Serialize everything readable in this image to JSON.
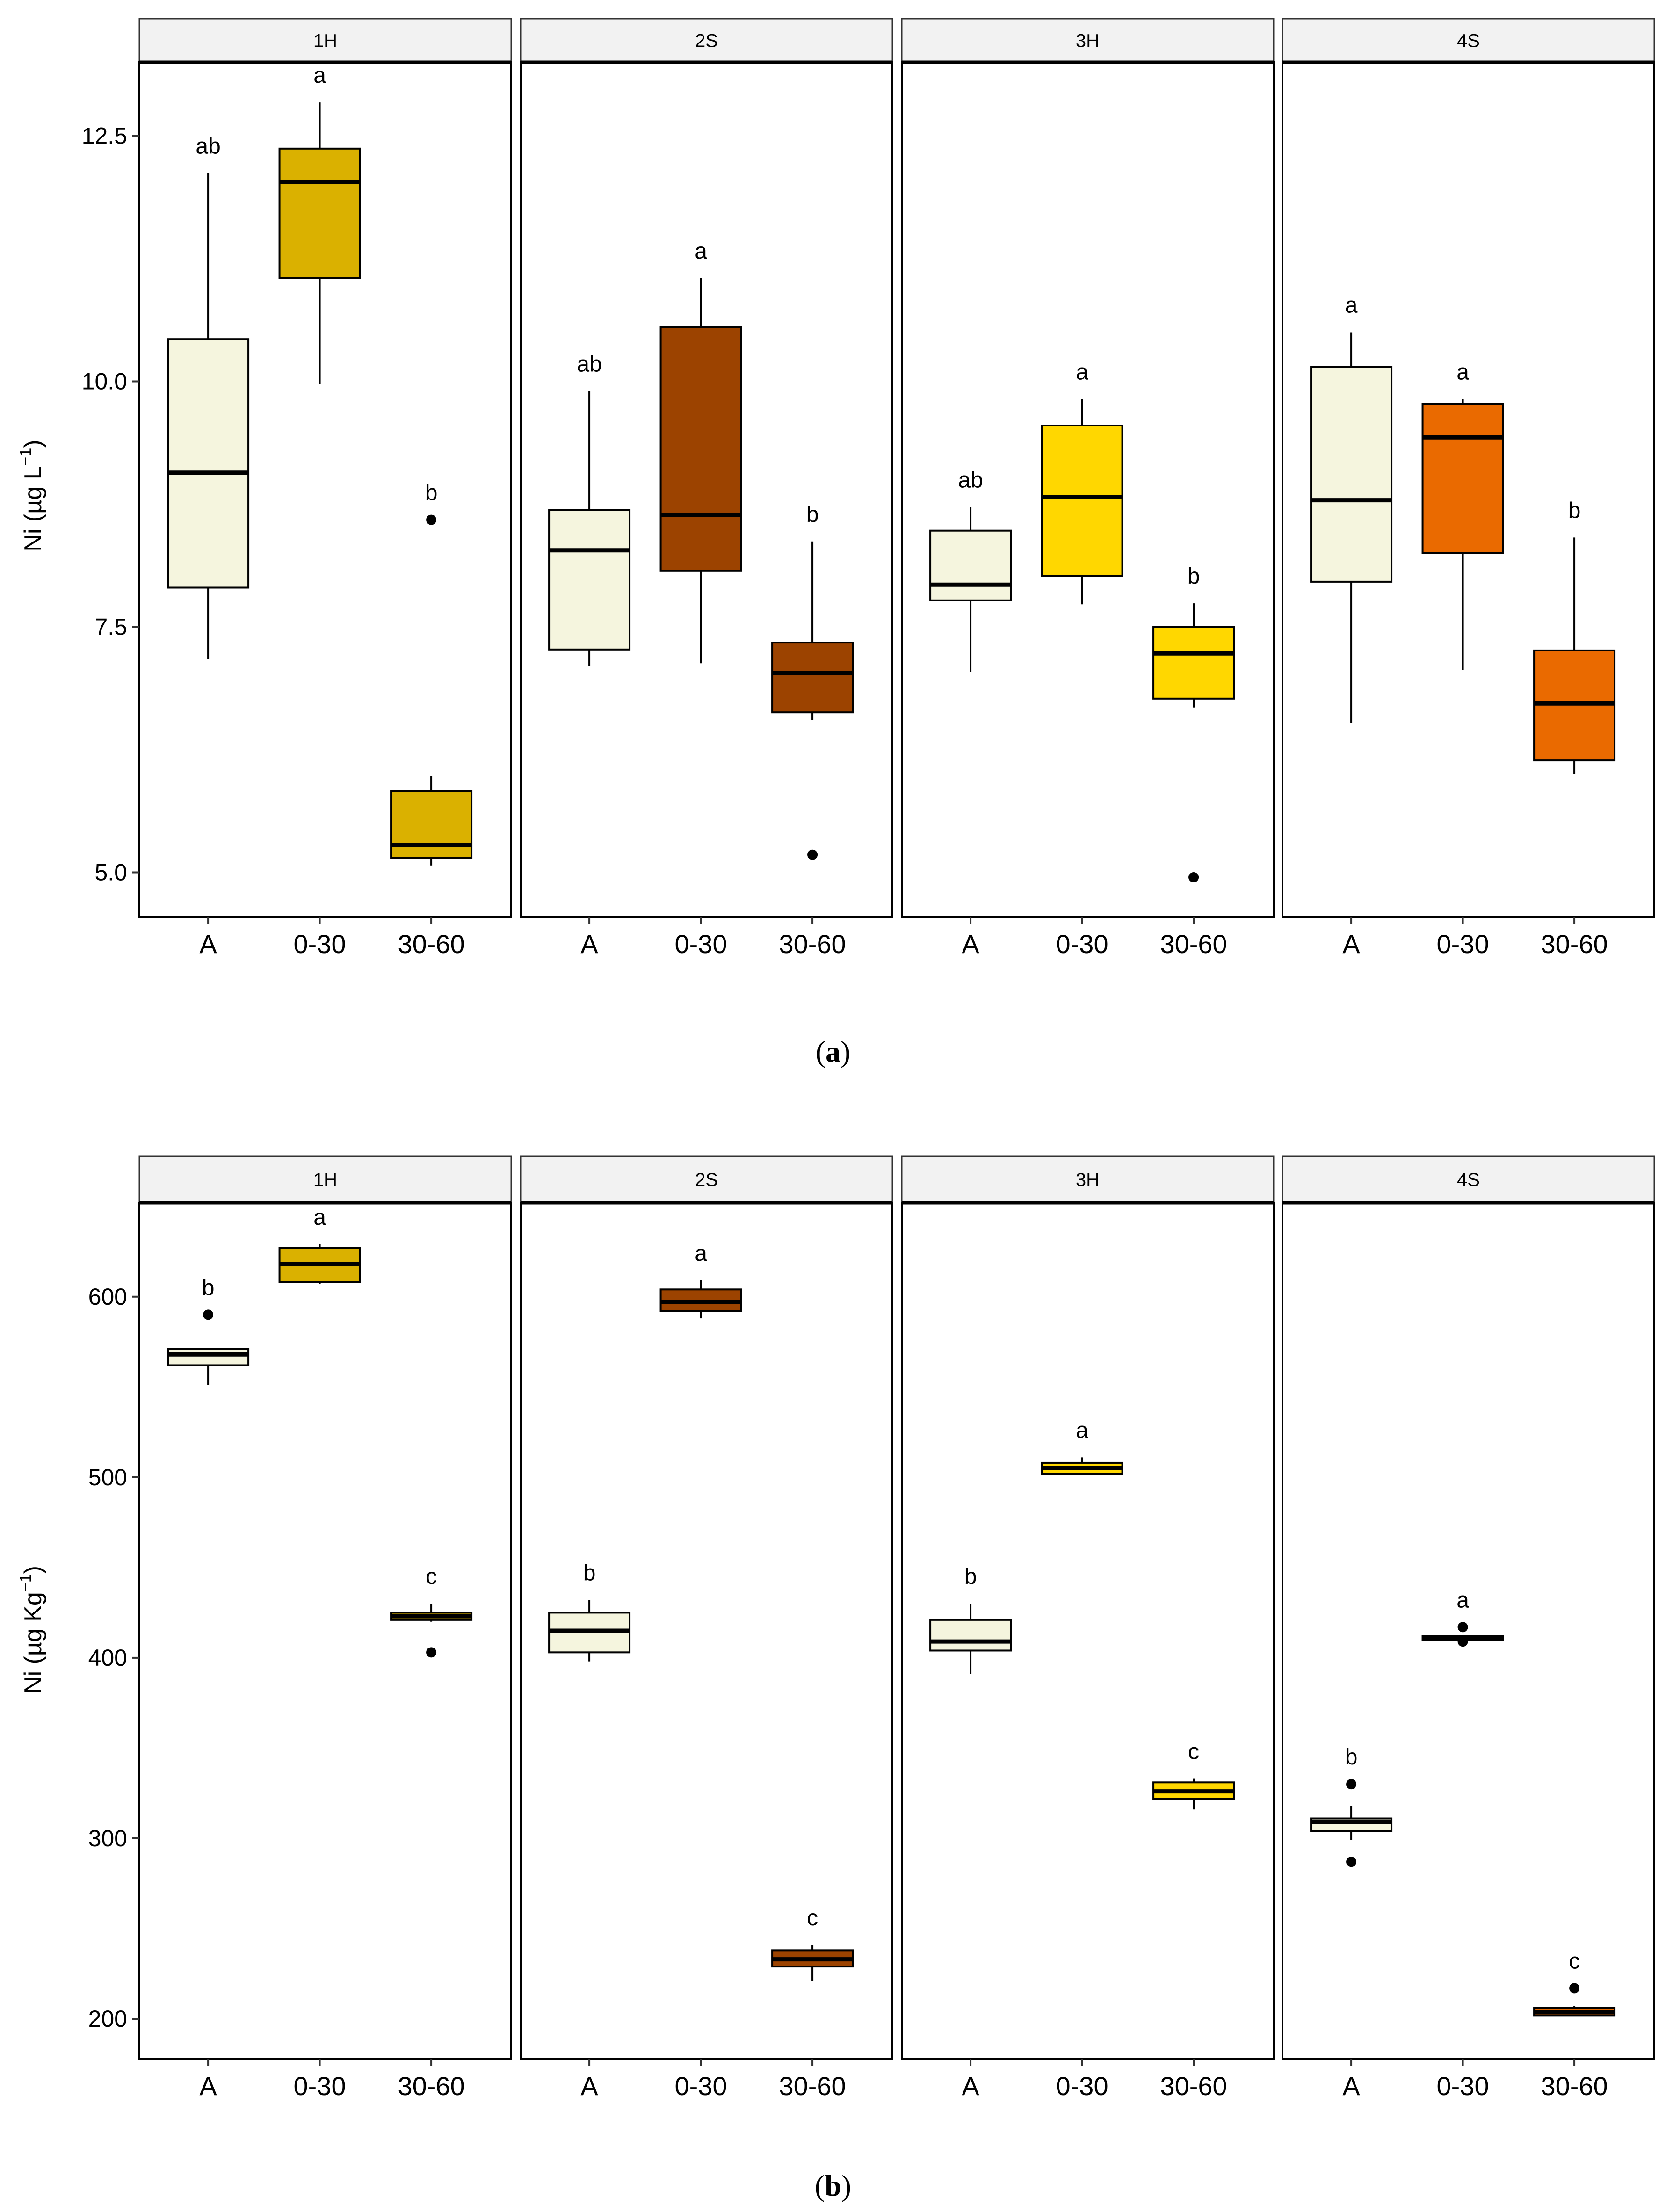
{
  "figure": {
    "caption_a": "(a)",
    "caption_b": "(b)",
    "caption_a_letter": "a",
    "caption_b_letter": "b"
  },
  "colors": {
    "A": "#f5f5de",
    "1H": "#dab100",
    "2S": "#9c4300",
    "3H": "#ffd700",
    "4S": "#ea6a00",
    "strip_fill": "#f2f2f2",
    "outline": "#000000"
  },
  "chart_data": [
    {
      "type": "boxplot",
      "ylabel": "Ni (µg L⁻¹)",
      "ylabel_main": "Ni (µg L",
      "ylabel_sup": "−1",
      "ylabel_close": ")",
      "ylim": [
        4.55,
        13.25
      ],
      "yticks": [
        5.0,
        7.5,
        10.0,
        12.5
      ],
      "ytick_labels": [
        "5.0",
        "7.5",
        "10.0",
        "12.5"
      ],
      "categories": [
        "A",
        "0-30",
        "30-60"
      ],
      "facets": [
        {
          "name": "1H",
          "boxes": [
            {
              "cat": "A",
              "min": 7.17,
              "q1": 7.9,
              "median": 9.07,
              "q3": 10.43,
              "max": 12.12,
              "outliers": [],
              "letter": "ab"
            },
            {
              "cat": "0-30",
              "min": 9.97,
              "q1": 11.05,
              "median": 12.03,
              "q3": 12.37,
              "max": 12.84,
              "outliers": [],
              "letter": "a"
            },
            {
              "cat": "30-60",
              "min": 5.07,
              "q1": 5.15,
              "median": 5.28,
              "q3": 5.83,
              "max": 5.98,
              "outliers": [
                8.59
              ],
              "letter": "b"
            }
          ]
        },
        {
          "name": "2S",
          "boxes": [
            {
              "cat": "A",
              "min": 7.1,
              "q1": 7.27,
              "median": 8.28,
              "q3": 8.69,
              "max": 9.9,
              "outliers": [],
              "letter": "ab"
            },
            {
              "cat": "0-30",
              "min": 7.13,
              "q1": 8.07,
              "median": 8.64,
              "q3": 10.55,
              "max": 11.05,
              "outliers": [],
              "letter": "a"
            },
            {
              "cat": "30-60",
              "min": 6.55,
              "q1": 6.63,
              "median": 7.03,
              "q3": 7.34,
              "max": 8.37,
              "outliers": [
                5.18
              ],
              "letter": "b"
            }
          ]
        },
        {
          "name": "3H",
          "boxes": [
            {
              "cat": "A",
              "min": 7.04,
              "q1": 7.77,
              "median": 7.93,
              "q3": 8.48,
              "max": 8.72,
              "outliers": [],
              "letter": "ab"
            },
            {
              "cat": "0-30",
              "min": 7.73,
              "q1": 8.02,
              "median": 8.82,
              "q3": 9.55,
              "max": 9.82,
              "outliers": [],
              "letter": "a"
            },
            {
              "cat": "30-60",
              "min": 6.68,
              "q1": 6.77,
              "median": 7.23,
              "q3": 7.5,
              "max": 7.74,
              "outliers": [
                4.95
              ],
              "letter": "b"
            }
          ]
        },
        {
          "name": "4S",
          "boxes": [
            {
              "cat": "A",
              "min": 6.52,
              "q1": 7.96,
              "median": 8.79,
              "q3": 10.15,
              "max": 10.5,
              "outliers": [],
              "letter": "a"
            },
            {
              "cat": "0-30",
              "min": 7.06,
              "q1": 8.25,
              "median": 9.43,
              "q3": 9.77,
              "max": 9.82,
              "outliers": [],
              "letter": "a"
            },
            {
              "cat": "30-60",
              "min": 6.0,
              "q1": 6.14,
              "median": 6.72,
              "q3": 7.26,
              "max": 8.41,
              "outliers": [],
              "letter": "b"
            }
          ]
        }
      ]
    },
    {
      "type": "boxplot",
      "ylabel": "Ni (µg Kg⁻¹)",
      "ylabel_main": "Ni (µg Kg",
      "ylabel_sup": "−1",
      "ylabel_close": ")",
      "ylim": [
        178,
        652
      ],
      "yticks": [
        200,
        300,
        400,
        500,
        600
      ],
      "ytick_labels": [
        "200",
        "300",
        "400",
        "500",
        "600"
      ],
      "categories": [
        "A",
        "0-30",
        "30-60"
      ],
      "facets": [
        {
          "name": "1H",
          "boxes": [
            {
              "cat": "A",
              "min": 551,
              "q1": 562,
              "median": 568,
              "q3": 571,
              "max": 571,
              "outliers": [
                590
              ],
              "letter": "b"
            },
            {
              "cat": "0-30",
              "min": 607,
              "q1": 608,
              "median": 618,
              "q3": 627,
              "max": 629,
              "outliers": [],
              "letter": "a"
            },
            {
              "cat": "30-60",
              "min": 420,
              "q1": 421,
              "median": 423,
              "q3": 425,
              "max": 430,
              "outliers": [
                403
              ],
              "letter": "c"
            }
          ]
        },
        {
          "name": "2S",
          "boxes": [
            {
              "cat": "A",
              "min": 398,
              "q1": 403,
              "median": 415,
              "q3": 425,
              "max": 432,
              "outliers": [],
              "letter": "b"
            },
            {
              "cat": "0-30",
              "min": 588,
              "q1": 592,
              "median": 597,
              "q3": 604,
              "max": 609,
              "outliers": [],
              "letter": "a"
            },
            {
              "cat": "30-60",
              "min": 221,
              "q1": 229,
              "median": 233,
              "q3": 238,
              "max": 241,
              "outliers": [],
              "letter": "c"
            }
          ]
        },
        {
          "name": "3H",
          "boxes": [
            {
              "cat": "A",
              "min": 391,
              "q1": 404,
              "median": 409,
              "q3": 421,
              "max": 430,
              "outliers": [],
              "letter": "b"
            },
            {
              "cat": "0-30",
              "min": 501,
              "q1": 502,
              "median": 505,
              "q3": 508,
              "max": 511,
              "outliers": [],
              "letter": "a"
            },
            {
              "cat": "30-60",
              "min": 316,
              "q1": 322,
              "median": 326,
              "q3": 331,
              "max": 333,
              "outliers": [],
              "letter": "c"
            }
          ]
        },
        {
          "name": "4S",
          "boxes": [
            {
              "cat": "A",
              "min": 299,
              "q1": 304,
              "median": 309,
              "q3": 311,
              "max": 318,
              "outliers": [
                330,
                287
              ],
              "letter": "b"
            },
            {
              "cat": "0-30",
              "min": 410,
              "q1": 410,
              "median": 411,
              "q3": 412,
              "max": 412,
              "outliers": [
                417,
                409
              ],
              "letter": "a"
            },
            {
              "cat": "30-60",
              "min": 202,
              "q1": 202,
              "median": 204,
              "q3": 206,
              "max": 207,
              "outliers": [
                217
              ],
              "letter": "c"
            }
          ]
        }
      ]
    }
  ]
}
